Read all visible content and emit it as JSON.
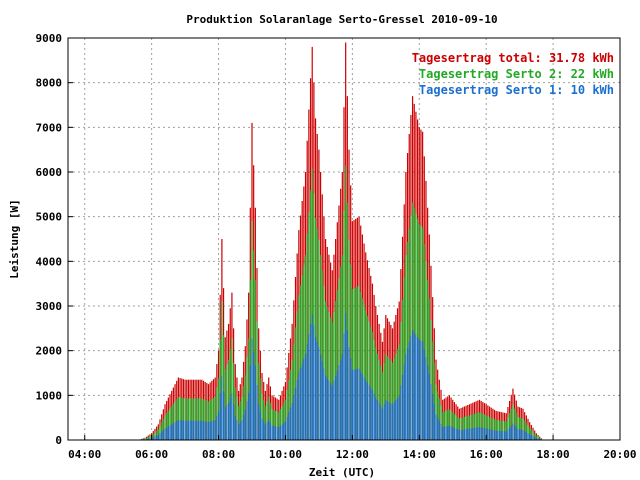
{
  "chart_data": {
    "type": "bar",
    "title": "Produktion Solaranlage Serto-Gressel 2010-09-10",
    "xlabel": "Zeit (UTC)",
    "ylabel": "Leistung [W]",
    "xlim": [
      3.5,
      20.0
    ],
    "ylim": [
      0,
      9000
    ],
    "grid": true,
    "legend_position": "top-right",
    "x_ticks": [
      {
        "value": 4,
        "label": "04:00"
      },
      {
        "value": 6,
        "label": "06:00"
      },
      {
        "value": 8,
        "label": "08:00"
      },
      {
        "value": 10,
        "label": "10:00"
      },
      {
        "value": 12,
        "label": "12:00"
      },
      {
        "value": 14,
        "label": "14:00"
      },
      {
        "value": 16,
        "label": "16:00"
      },
      {
        "value": 18,
        "label": "18:00"
      },
      {
        "value": 20,
        "label": "20:00"
      }
    ],
    "y_ticks": [
      {
        "value": 0,
        "label": "0"
      },
      {
        "value": 1000,
        "label": "1000"
      },
      {
        "value": 2000,
        "label": "2000"
      },
      {
        "value": 3000,
        "label": "3000"
      },
      {
        "value": 4000,
        "label": "4000"
      },
      {
        "value": 5000,
        "label": "5000"
      },
      {
        "value": 6000,
        "label": "6000"
      },
      {
        "value": 7000,
        "label": "7000"
      },
      {
        "value": 8000,
        "label": "8000"
      },
      {
        "value": 9000,
        "label": "9000"
      }
    ],
    "series": [
      {
        "name": "Tagesertrag total: 31.78 kWh",
        "color": "#cc0000"
      },
      {
        "name": "Tagesertrag Serto 2: 22 kWh",
        "color": "#22aa22"
      },
      {
        "name": "Tagesertrag Serto 1: 10 kWh",
        "color": "#1a6fd0"
      }
    ],
    "bar_step_hours": 0.05,
    "total_profile": [
      [
        5.6,
        0
      ],
      [
        5.8,
        50
      ],
      [
        6.0,
        150
      ],
      [
        6.2,
        350
      ],
      [
        6.4,
        800
      ],
      [
        6.6,
        1100
      ],
      [
        6.8,
        1400
      ],
      [
        7.0,
        1350
      ],
      [
        7.2,
        1350
      ],
      [
        7.5,
        1350
      ],
      [
        7.7,
        1250
      ],
      [
        7.9,
        1400
      ],
      [
        8.0,
        2000
      ],
      [
        8.1,
        4500
      ],
      [
        8.2,
        2300
      ],
      [
        8.3,
        2600
      ],
      [
        8.4,
        3300
      ],
      [
        8.5,
        1700
      ],
      [
        8.6,
        1100
      ],
      [
        8.7,
        1400
      ],
      [
        8.8,
        2100
      ],
      [
        8.9,
        3300
      ],
      [
        9.0,
        7100
      ],
      [
        9.1,
        5200
      ],
      [
        9.2,
        2500
      ],
      [
        9.3,
        1500
      ],
      [
        9.4,
        1100
      ],
      [
        9.5,
        1400
      ],
      [
        9.6,
        1000
      ],
      [
        9.8,
        900
      ],
      [
        10.0,
        1300
      ],
      [
        10.2,
        2600
      ],
      [
        10.4,
        4700
      ],
      [
        10.6,
        6000
      ],
      [
        10.8,
        8800
      ],
      [
        10.9,
        7200
      ],
      [
        11.0,
        6500
      ],
      [
        11.2,
        4500
      ],
      [
        11.4,
        3800
      ],
      [
        11.5,
        4500
      ],
      [
        11.7,
        6000
      ],
      [
        11.8,
        8900
      ],
      [
        11.9,
        6500
      ],
      [
        12.0,
        4900
      ],
      [
        12.2,
        5000
      ],
      [
        12.4,
        4200
      ],
      [
        12.6,
        3500
      ],
      [
        12.7,
        3000
      ],
      [
        12.9,
        2200
      ],
      [
        13.0,
        2800
      ],
      [
        13.2,
        2500
      ],
      [
        13.4,
        3100
      ],
      [
        13.6,
        6000
      ],
      [
        13.8,
        7700
      ],
      [
        14.0,
        7000
      ],
      [
        14.1,
        6900
      ],
      [
        14.2,
        5800
      ],
      [
        14.3,
        4600
      ],
      [
        14.5,
        1800
      ],
      [
        14.7,
        900
      ],
      [
        14.9,
        1000
      ],
      [
        15.2,
        700
      ],
      [
        15.5,
        800
      ],
      [
        15.8,
        900
      ],
      [
        16.0,
        800
      ],
      [
        16.3,
        650
      ],
      [
        16.6,
        600
      ],
      [
        16.8,
        1150
      ],
      [
        16.95,
        750
      ],
      [
        17.1,
        700
      ],
      [
        17.3,
        400
      ],
      [
        17.5,
        150
      ],
      [
        17.7,
        0
      ]
    ],
    "serto2_ratio": 0.69,
    "serto1_ratio": 0.32
  }
}
